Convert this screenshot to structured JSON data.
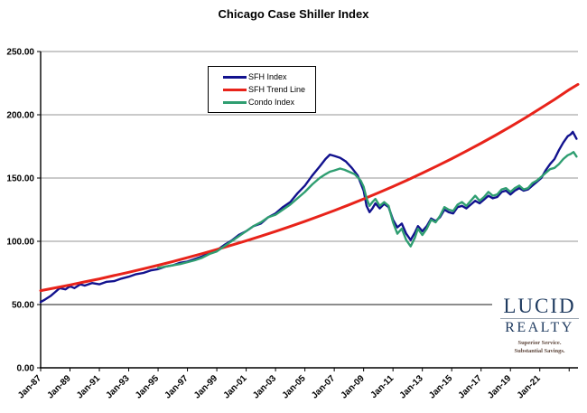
{
  "logo": {
    "line1": "LUCID",
    "line2": "REALTY",
    "tagline_line1": "Superior Service.",
    "tagline_line2": "Substantial Savings."
  },
  "chart_data": {
    "type": "line",
    "title": "Chicago Case Shiller Index",
    "xlabel": "",
    "ylabel": "",
    "grid": true,
    "legend_position": "top-center-inside",
    "x_axis": {
      "range": [
        1987,
        2023.6
      ],
      "tick_years": [
        1987,
        1989,
        1991,
        1993,
        1995,
        1997,
        1999,
        2001,
        2003,
        2005,
        2007,
        2009,
        2011,
        2013,
        2015,
        2017,
        2019,
        2021,
        2023
      ],
      "tick_labels": [
        "Jan-87",
        "Jan-89",
        "Jan-91",
        "Jan-93",
        "Jan-95",
        "Jan-97",
        "Jan-99",
        "Jan-01",
        "Jan-03",
        "Jan-05",
        "Jan-07",
        "Jan-09",
        "Jan-11",
        "Jan-13",
        "Jan-15",
        "Jan-17",
        "Jan-19",
        "Jan-21",
        ""
      ]
    },
    "y_axis": {
      "range": [
        0,
        250
      ],
      "ticks": [
        0,
        50,
        100,
        150,
        200,
        250
      ],
      "tick_labels": [
        "0.00",
        "50.00",
        "100.00",
        "150.00",
        "200.00",
        "250.00"
      ],
      "dark_gridline": 50
    },
    "series": [
      {
        "name": "SFH Index",
        "color": "#12128e",
        "width": 2.4,
        "points": [
          [
            1987.0,
            52
          ],
          [
            1987.3,
            54
          ],
          [
            1987.7,
            57
          ],
          [
            1988.0,
            60
          ],
          [
            1988.3,
            63
          ],
          [
            1988.7,
            62
          ],
          [
            1989.0,
            64.5
          ],
          [
            1989.3,
            63
          ],
          [
            1989.7,
            66
          ],
          [
            1990.0,
            65
          ],
          [
            1990.5,
            67
          ],
          [
            1991.0,
            66
          ],
          [
            1991.5,
            68
          ],
          [
            1992.0,
            68.5
          ],
          [
            1992.5,
            70.5
          ],
          [
            1993.0,
            72
          ],
          [
            1993.5,
            74
          ],
          [
            1994.0,
            75
          ],
          [
            1994.5,
            77
          ],
          [
            1995.0,
            78
          ],
          [
            1995.5,
            80
          ],
          [
            1996.0,
            81
          ],
          [
            1996.5,
            83
          ],
          [
            1997.0,
            84
          ],
          [
            1997.5,
            86
          ],
          [
            1998.0,
            88
          ],
          [
            1998.5,
            91
          ],
          [
            1999.0,
            93
          ],
          [
            1999.5,
            97
          ],
          [
            2000.0,
            100.5
          ],
          [
            2000.5,
            105
          ],
          [
            2001.0,
            108
          ],
          [
            2001.5,
            112
          ],
          [
            2002.0,
            114
          ],
          [
            2002.5,
            119
          ],
          [
            2003.0,
            122
          ],
          [
            2003.5,
            127
          ],
          [
            2004.0,
            131
          ],
          [
            2004.5,
            138
          ],
          [
            2005.0,
            144
          ],
          [
            2005.5,
            152
          ],
          [
            2006.0,
            159
          ],
          [
            2006.4,
            165
          ],
          [
            2006.7,
            168.5
          ],
          [
            2007.0,
            167.5
          ],
          [
            2007.4,
            166
          ],
          [
            2007.8,
            163
          ],
          [
            2008.2,
            158
          ],
          [
            2008.6,
            152
          ],
          [
            2009.0,
            140
          ],
          [
            2009.2,
            128
          ],
          [
            2009.4,
            123
          ],
          [
            2009.6,
            126
          ],
          [
            2009.8,
            130
          ],
          [
            2010.1,
            126
          ],
          [
            2010.4,
            129.5
          ],
          [
            2010.7,
            127
          ],
          [
            2011.0,
            117
          ],
          [
            2011.3,
            111
          ],
          [
            2011.6,
            114
          ],
          [
            2011.9,
            106
          ],
          [
            2012.2,
            101
          ],
          [
            2012.5,
            107
          ],
          [
            2012.7,
            112
          ],
          [
            2013.0,
            108
          ],
          [
            2013.3,
            112
          ],
          [
            2013.6,
            118
          ],
          [
            2013.9,
            116
          ],
          [
            2014.2,
            119
          ],
          [
            2014.5,
            125
          ],
          [
            2014.8,
            123
          ],
          [
            2015.1,
            122
          ],
          [
            2015.4,
            127
          ],
          [
            2015.7,
            128
          ],
          [
            2016.0,
            126
          ],
          [
            2016.3,
            129
          ],
          [
            2016.6,
            132
          ],
          [
            2016.9,
            130
          ],
          [
            2017.2,
            133
          ],
          [
            2017.5,
            136
          ],
          [
            2017.8,
            134
          ],
          [
            2018.1,
            135
          ],
          [
            2018.4,
            139
          ],
          [
            2018.7,
            140
          ],
          [
            2019.0,
            137
          ],
          [
            2019.3,
            140
          ],
          [
            2019.6,
            142
          ],
          [
            2019.9,
            140
          ],
          [
            2020.2,
            141
          ],
          [
            2020.5,
            144
          ],
          [
            2020.8,
            147
          ],
          [
            2021.1,
            150
          ],
          [
            2021.4,
            156
          ],
          [
            2021.7,
            161
          ],
          [
            2022.0,
            165
          ],
          [
            2022.3,
            172
          ],
          [
            2022.6,
            178
          ],
          [
            2022.9,
            183
          ],
          [
            2023.1,
            184.5
          ],
          [
            2023.25,
            186.5
          ],
          [
            2023.5,
            181
          ]
        ]
      },
      {
        "name": "SFH Trend Line",
        "color": "#e8231a",
        "width": 3,
        "points": [
          [
            1987,
            61.0
          ],
          [
            1988,
            63.2
          ],
          [
            1989,
            65.5
          ],
          [
            1990,
            67.9
          ],
          [
            1991,
            70.3
          ],
          [
            1992,
            72.9
          ],
          [
            1993,
            75.5
          ],
          [
            1994,
            78.3
          ],
          [
            1995,
            81.1
          ],
          [
            1996,
            84.0
          ],
          [
            1997,
            87.1
          ],
          [
            1998,
            90.2
          ],
          [
            1999,
            93.5
          ],
          [
            2000,
            96.9
          ],
          [
            2001,
            100.4
          ],
          [
            2002,
            104.1
          ],
          [
            2003,
            107.8
          ],
          [
            2004,
            111.7
          ],
          [
            2005,
            115.8
          ],
          [
            2006,
            120.0
          ],
          [
            2007,
            124.3
          ],
          [
            2008,
            128.8
          ],
          [
            2009,
            133.5
          ],
          [
            2010,
            138.3
          ],
          [
            2011,
            143.3
          ],
          [
            2012,
            148.5
          ],
          [
            2013,
            153.9
          ],
          [
            2014,
            159.5
          ],
          [
            2015,
            165.3
          ],
          [
            2016,
            171.3
          ],
          [
            2017,
            177.5
          ],
          [
            2018,
            183.9
          ],
          [
            2019,
            190.6
          ],
          [
            2020,
            197.5
          ],
          [
            2021,
            204.7
          ],
          [
            2022,
            212.1
          ],
          [
            2023,
            219.8
          ],
          [
            2023.6,
            224.0
          ]
        ]
      },
      {
        "name": "Condo Index",
        "color": "#2f9e71",
        "width": 2.4,
        "points": [
          [
            1995.0,
            79
          ],
          [
            1995.5,
            80
          ],
          [
            1996.0,
            81
          ],
          [
            1996.5,
            82
          ],
          [
            1997.0,
            83.5
          ],
          [
            1997.5,
            85
          ],
          [
            1998.0,
            87
          ],
          [
            1998.5,
            90
          ],
          [
            1999.0,
            92
          ],
          [
            1999.5,
            96
          ],
          [
            2000.0,
            100
          ],
          [
            2000.5,
            104
          ],
          [
            2001.0,
            108
          ],
          [
            2001.5,
            112
          ],
          [
            2002.0,
            115
          ],
          [
            2002.5,
            119
          ],
          [
            2003.0,
            121
          ],
          [
            2003.5,
            125
          ],
          [
            2004.0,
            129
          ],
          [
            2004.5,
            134
          ],
          [
            2005.0,
            139
          ],
          [
            2005.5,
            145
          ],
          [
            2006.0,
            150
          ],
          [
            2006.4,
            153
          ],
          [
            2006.7,
            155
          ],
          [
            2007.0,
            156
          ],
          [
            2007.4,
            157.5
          ],
          [
            2007.7,
            156.5
          ],
          [
            2008.0,
            155
          ],
          [
            2008.4,
            153
          ],
          [
            2008.8,
            148
          ],
          [
            2009.0,
            143
          ],
          [
            2009.2,
            134
          ],
          [
            2009.4,
            128
          ],
          [
            2009.6,
            131
          ],
          [
            2009.8,
            133.5
          ],
          [
            2010.1,
            128
          ],
          [
            2010.4,
            131
          ],
          [
            2010.7,
            128
          ],
          [
            2011.0,
            115
          ],
          [
            2011.3,
            106
          ],
          [
            2011.6,
            110
          ],
          [
            2011.9,
            101
          ],
          [
            2012.2,
            96
          ],
          [
            2012.5,
            103
          ],
          [
            2012.7,
            110
          ],
          [
            2013.0,
            105
          ],
          [
            2013.3,
            110
          ],
          [
            2013.6,
            117
          ],
          [
            2013.9,
            115
          ],
          [
            2014.2,
            120
          ],
          [
            2014.5,
            127
          ],
          [
            2014.8,
            125
          ],
          [
            2015.1,
            124
          ],
          [
            2015.4,
            129
          ],
          [
            2015.7,
            131
          ],
          [
            2016.0,
            128
          ],
          [
            2016.3,
            132
          ],
          [
            2016.6,
            136
          ],
          [
            2016.9,
            132
          ],
          [
            2017.2,
            135
          ],
          [
            2017.5,
            139
          ],
          [
            2017.8,
            136
          ],
          [
            2018.1,
            137
          ],
          [
            2018.4,
            141
          ],
          [
            2018.7,
            142
          ],
          [
            2019.0,
            139
          ],
          [
            2019.3,
            142
          ],
          [
            2019.6,
            144
          ],
          [
            2019.9,
            141
          ],
          [
            2020.2,
            142
          ],
          [
            2020.5,
            146
          ],
          [
            2020.8,
            148
          ],
          [
            2021.1,
            151
          ],
          [
            2021.4,
            154
          ],
          [
            2021.7,
            157
          ],
          [
            2022.0,
            158
          ],
          [
            2022.3,
            161
          ],
          [
            2022.6,
            165
          ],
          [
            2022.9,
            168
          ],
          [
            2023.1,
            169
          ],
          [
            2023.3,
            170.5
          ],
          [
            2023.5,
            167
          ]
        ]
      }
    ]
  }
}
